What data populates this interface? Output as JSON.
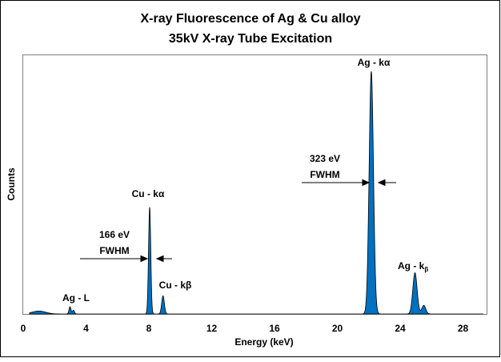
{
  "chart_data": {
    "type": "area",
    "title": "X-ray Fluorescence of Ag & Cu alloy",
    "subtitle": "35kV X-ray Tube Excitation",
    "xlabel": "Energy (keV)",
    "ylabel": "Counts",
    "xlim": [
      0,
      29.5
    ],
    "ylim": [
      0,
      1.07
    ],
    "xticks": [
      "0",
      "4",
      "8",
      "12",
      "16",
      "20",
      "24",
      "28"
    ],
    "grid": false,
    "fill_color": "#0070C0",
    "peaks": [
      {
        "name": "Ag-L bump",
        "center": 1.0,
        "height": 0.012,
        "fwhm": 1.0
      },
      {
        "name": "Ag - L",
        "center": 2.98,
        "height": 0.03,
        "fwhm": 0.15
      },
      {
        "name": "Ag - L2",
        "center": 3.2,
        "height": 0.015,
        "fwhm": 0.15
      },
      {
        "name": "Cu - kα",
        "center": 8.05,
        "height": 0.44,
        "fwhm": 0.166
      },
      {
        "name": "Cu - kβ",
        "center": 8.9,
        "height": 0.075,
        "fwhm": 0.2
      },
      {
        "name": "Ag - kα",
        "center": 22.16,
        "height": 1.0,
        "fwhm": 0.323
      },
      {
        "name": "Ag - kβ",
        "center": 24.94,
        "height": 0.17,
        "fwhm": 0.32
      },
      {
        "name": "Ag - kβ2",
        "center": 25.5,
        "height": 0.035,
        "fwhm": 0.3
      }
    ],
    "annotations": {
      "ag_ka": "Ag - kα",
      "cu_ka": "Cu - kα",
      "cu_kb": "Cu - kβ",
      "ag_l": "Ag - L",
      "ag_kb_main": "Ag - k",
      "ag_kb_sub": "β",
      "cu_fwhm_value": "166 eV",
      "cu_fwhm_label": "FWHM",
      "ag_fwhm_value": "323 eV",
      "ag_fwhm_label": "FWHM"
    }
  }
}
